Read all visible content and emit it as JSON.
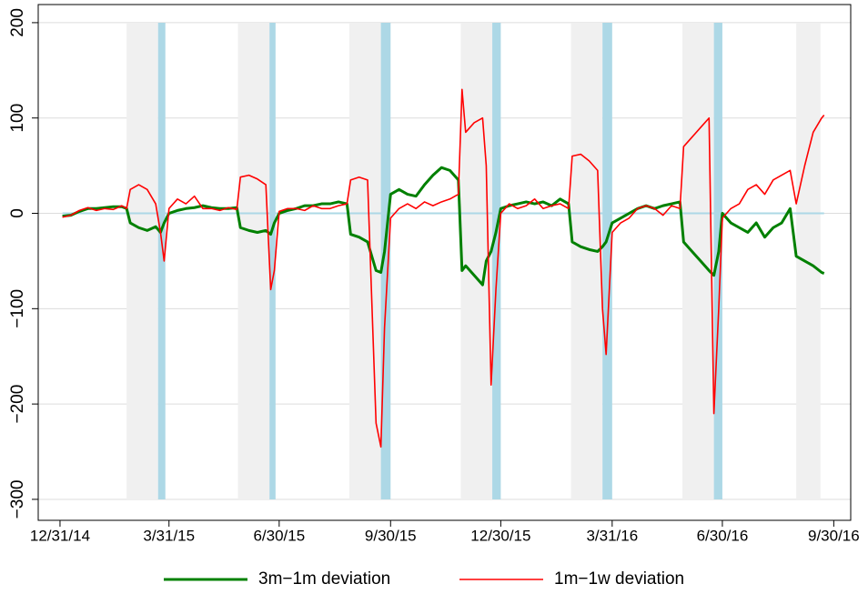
{
  "chart_data": {
    "type": "line",
    "x": [
      "2015-01-02",
      "2015-01-09",
      "2015-01-16",
      "2015-01-23",
      "2015-01-30",
      "2015-02-06",
      "2015-02-13",
      "2015-02-20",
      "2015-02-24",
      "2015-02-27",
      "2015-03-06",
      "2015-03-13",
      "2015-03-20",
      "2015-03-24",
      "2015-03-27",
      "2015-03-31",
      "2015-04-07",
      "2015-04-14",
      "2015-04-21",
      "2015-04-28",
      "2015-05-05",
      "2015-05-12",
      "2015-05-19",
      "2015-05-26",
      "2015-05-29",
      "2015-06-05",
      "2015-06-12",
      "2015-06-19",
      "2015-06-23",
      "2015-06-26",
      "2015-06-30",
      "2015-07-07",
      "2015-07-14",
      "2015-07-21",
      "2015-07-28",
      "2015-08-04",
      "2015-08-11",
      "2015-08-18",
      "2015-08-25",
      "2015-08-28",
      "2015-09-04",
      "2015-09-11",
      "2015-09-18",
      "2015-09-22",
      "2015-09-25",
      "2015-09-30",
      "2015-10-07",
      "2015-10-14",
      "2015-10-21",
      "2015-10-28",
      "2015-11-04",
      "2015-11-11",
      "2015-11-18",
      "2015-11-25",
      "2015-11-28",
      "2015-12-01",
      "2015-12-08",
      "2015-12-15",
      "2015-12-18",
      "2015-12-22",
      "2015-12-26",
      "2015-12-30",
      "2016-01-06",
      "2016-01-13",
      "2016-01-20",
      "2016-01-27",
      "2016-02-03",
      "2016-02-10",
      "2016-02-17",
      "2016-02-24",
      "2016-02-27",
      "2016-03-05",
      "2016-03-12",
      "2016-03-19",
      "2016-03-23",
      "2016-03-26",
      "2016-03-31",
      "2016-04-07",
      "2016-04-14",
      "2016-04-21",
      "2016-04-28",
      "2016-05-05",
      "2016-05-12",
      "2016-05-19",
      "2016-05-26",
      "2016-05-29",
      "2016-06-05",
      "2016-06-12",
      "2016-06-19",
      "2016-06-23",
      "2016-06-27",
      "2016-06-30",
      "2016-07-07",
      "2016-07-14",
      "2016-07-21",
      "2016-07-28",
      "2016-08-04",
      "2016-08-11",
      "2016-08-18",
      "2016-08-25",
      "2016-08-30",
      "2016-09-06",
      "2016-09-13",
      "2016-09-20",
      "2016-09-22"
    ],
    "series": [
      {
        "name": "3m−1m deviation",
        "color": "#008000",
        "width": 3,
        "values": [
          -3,
          -2,
          2,
          5,
          5,
          6,
          7,
          7,
          5,
          -10,
          -15,
          -18,
          -14,
          -20,
          -10,
          0,
          3,
          5,
          6,
          8,
          6,
          5,
          5,
          6,
          -15,
          -18,
          -20,
          -18,
          -22,
          -10,
          0,
          3,
          5,
          8,
          8,
          10,
          10,
          12,
          10,
          -22,
          -25,
          -30,
          -60,
          -62,
          -40,
          20,
          25,
          20,
          18,
          30,
          40,
          48,
          45,
          35,
          -60,
          -55,
          -65,
          -75,
          -50,
          -40,
          -20,
          5,
          8,
          10,
          12,
          10,
          12,
          8,
          15,
          10,
          -30,
          -35,
          -38,
          -40,
          -35,
          -30,
          -10,
          -5,
          0,
          5,
          8,
          5,
          8,
          10,
          12,
          -30,
          -40,
          -50,
          -60,
          -65,
          -40,
          0,
          -10,
          -15,
          -20,
          -10,
          -25,
          -15,
          -10,
          5,
          -45,
          -50,
          -55,
          -62,
          -63
        ]
      },
      {
        "name": "1m−1w deviation",
        "color": "#ff0000",
        "width": 1.6,
        "values": [
          -4,
          -2,
          3,
          6,
          3,
          5,
          4,
          8,
          5,
          25,
          30,
          25,
          10,
          -20,
          -50,
          5,
          15,
          10,
          18,
          5,
          5,
          3,
          6,
          4,
          38,
          40,
          36,
          30,
          -80,
          -60,
          2,
          5,
          5,
          3,
          8,
          5,
          5,
          8,
          10,
          35,
          38,
          35,
          -220,
          -245,
          -120,
          -5,
          5,
          10,
          5,
          12,
          8,
          12,
          15,
          20,
          130,
          85,
          95,
          100,
          50,
          -180,
          -80,
          0,
          10,
          5,
          8,
          15,
          5,
          8,
          10,
          5,
          60,
          62,
          55,
          45,
          -100,
          -148,
          -20,
          -10,
          -5,
          5,
          8,
          5,
          -2,
          8,
          5,
          70,
          80,
          90,
          100,
          -210,
          -100,
          -5,
          5,
          10,
          25,
          30,
          20,
          35,
          40,
          45,
          10,
          50,
          85,
          100,
          103
        ]
      }
    ],
    "shaded_regions": [
      {
        "start": "2015-02-24",
        "end": "2015-03-22",
        "color": "#f0f0f0"
      },
      {
        "start": "2015-03-22",
        "end": "2015-03-28",
        "color": "#add8e6"
      },
      {
        "start": "2015-05-27",
        "end": "2015-06-22",
        "color": "#f0f0f0"
      },
      {
        "start": "2015-06-22",
        "end": "2015-06-27",
        "color": "#add8e6"
      },
      {
        "start": "2015-08-27",
        "end": "2015-09-22",
        "color": "#f0f0f0"
      },
      {
        "start": "2015-09-22",
        "end": "2015-09-30",
        "color": "#add8e6"
      },
      {
        "start": "2015-11-27",
        "end": "2015-12-23",
        "color": "#f0f0f0"
      },
      {
        "start": "2015-12-23",
        "end": "2015-12-30",
        "color": "#add8e6"
      },
      {
        "start": "2016-02-26",
        "end": "2016-03-23",
        "color": "#f0f0f0"
      },
      {
        "start": "2016-03-23",
        "end": "2016-03-31",
        "color": "#add8e6"
      },
      {
        "start": "2016-05-28",
        "end": "2016-06-23",
        "color": "#f0f0f0"
      },
      {
        "start": "2016-06-23",
        "end": "2016-06-30",
        "color": "#add8e6"
      },
      {
        "start": "2016-08-30",
        "end": "2016-09-19",
        "color": "#f0f0f0"
      }
    ],
    "hline": {
      "value": 0,
      "color": "#add8e6"
    },
    "xlim": [
      "2014-12-13",
      "2016-10-14"
    ],
    "xticks": [
      {
        "value": "2014-12-31",
        "label": "12/31/14"
      },
      {
        "value": "2015-03-31",
        "label": "3/31/15"
      },
      {
        "value": "2015-06-30",
        "label": "6/30/15"
      },
      {
        "value": "2015-09-30",
        "label": "9/30/15"
      },
      {
        "value": "2015-12-30",
        "label": "12/30/15"
      },
      {
        "value": "2016-03-31",
        "label": "3/31/16"
      },
      {
        "value": "2016-06-30",
        "label": "6/30/16"
      },
      {
        "value": "2016-09-30",
        "label": "9/30/16"
      }
    ],
    "ylim": [
      -322,
      219
    ],
    "yticks": [
      {
        "value": -300,
        "label": "−300"
      },
      {
        "value": -200,
        "label": "−200"
      },
      {
        "value": -100,
        "label": "−100"
      },
      0,
      100,
      200
    ],
    "grid": true,
    "legend": "bottom"
  }
}
